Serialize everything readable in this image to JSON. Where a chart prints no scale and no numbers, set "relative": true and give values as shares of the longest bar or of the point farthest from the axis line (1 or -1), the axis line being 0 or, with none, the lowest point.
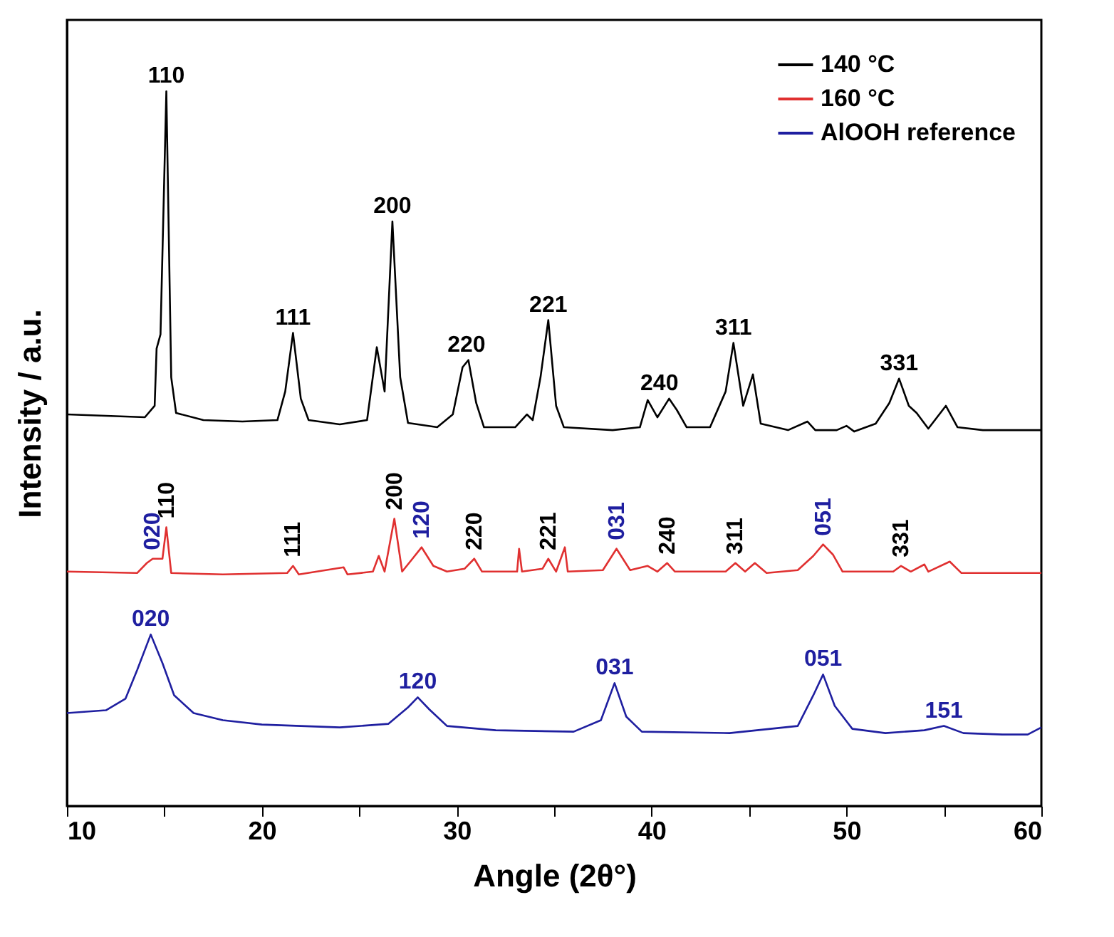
{
  "chart_data": {
    "type": "line",
    "relative": true,
    "xlabel": "Angle (2θ°)",
    "ylabel": "Intensity / a.u.",
    "xlim": [
      10,
      60
    ],
    "xticks": [
      10,
      {
        "value": 15,
        "label": null
      },
      20,
      {
        "value": 25,
        "label": null
      },
      30,
      {
        "value": 35,
        "label": null
      },
      40,
      {
        "value": 45,
        "label": null
      },
      50,
      {
        "value": 55,
        "label": null
      },
      60
    ],
    "legend": "top right",
    "grid": false,
    "line_style": "solid",
    "marker": "none",
    "series": [
      {
        "name": "140 °C",
        "color": "#000000",
        "x": [
          10,
          12,
          14,
          14.5,
          14.6,
          14.8,
          15.1,
          15.35,
          15.6,
          17,
          19,
          20.8,
          21.2,
          21.6,
          22,
          22.4,
          24,
          25.4,
          25.9,
          26.3,
          26.7,
          27.1,
          27.5,
          29,
          29.8,
          30.3,
          30.6,
          31,
          31.4,
          33,
          33.6,
          33.9,
          34.3,
          34.7,
          35.1,
          35.5,
          38,
          39.4,
          39.8,
          40.3,
          40.9,
          41.3,
          41.8,
          43,
          43.8,
          44.2,
          44.7,
          45.2,
          45.6,
          47,
          48,
          48.4,
          49.5,
          50,
          50.4,
          51.5,
          52.2,
          52.7,
          53.2,
          53.6,
          54.2,
          55.1,
          55.7,
          57,
          60
        ],
        "values": [
          0.548,
          0.546,
          0.544,
          0.56,
          0.64,
          0.66,
          1.0,
          0.6,
          0.55,
          0.54,
          0.538,
          0.54,
          0.58,
          0.662,
          0.57,
          0.54,
          0.534,
          0.54,
          0.642,
          0.58,
          0.818,
          0.6,
          0.536,
          0.53,
          0.548,
          0.614,
          0.624,
          0.564,
          0.53,
          0.53,
          0.548,
          0.54,
          0.6,
          0.68,
          0.56,
          0.53,
          0.526,
          0.53,
          0.568,
          0.544,
          0.57,
          0.554,
          0.53,
          0.53,
          0.58,
          0.648,
          0.56,
          0.604,
          0.535,
          0.526,
          0.538,
          0.526,
          0.526,
          0.532,
          0.524,
          0.535,
          0.564,
          0.598,
          0.56,
          0.55,
          0.528,
          0.56,
          0.53,
          0.526,
          0.526
        ]
      },
      {
        "name": "160 °C",
        "color": "#e03030",
        "x": [
          10,
          13.6,
          14.1,
          14.4,
          14.9,
          15.1,
          15.35,
          18,
          21.3,
          21.6,
          21.9,
          24.2,
          24.4,
          25.7,
          26,
          26.3,
          26.8,
          27.2,
          27.7,
          28.2,
          28.8,
          29.5,
          30.4,
          30.9,
          31.3,
          33.1,
          33.2,
          33.35,
          34.4,
          34.7,
          35.1,
          35.55,
          35.7,
          37.5,
          38.2,
          38.9,
          39.8,
          40.3,
          40.8,
          41.2,
          43.8,
          44.3,
          44.8,
          45.3,
          45.9,
          47.5,
          48.3,
          48.8,
          49.3,
          49.8,
          52.4,
          52.8,
          53.3,
          54,
          54.2,
          55.3,
          55.9,
          60
        ],
        "values": [
          0.328,
          0.326,
          0.34,
          0.346,
          0.346,
          0.39,
          0.326,
          0.324,
          0.326,
          0.336,
          0.324,
          0.334,
          0.324,
          0.328,
          0.35,
          0.328,
          0.402,
          0.328,
          0.345,
          0.362,
          0.336,
          0.328,
          0.332,
          0.346,
          0.328,
          0.328,
          0.36,
          0.328,
          0.332,
          0.346,
          0.328,
          0.362,
          0.328,
          0.33,
          0.36,
          0.33,
          0.336,
          0.328,
          0.34,
          0.328,
          0.328,
          0.34,
          0.328,
          0.34,
          0.326,
          0.33,
          0.35,
          0.366,
          0.352,
          0.328,
          0.328,
          0.336,
          0.328,
          0.338,
          0.328,
          0.342,
          0.326,
          0.326
        ]
      },
      {
        "name": "AlOOH reference",
        "color": "#1f1fa0",
        "x": [
          10,
          12,
          13,
          13.6,
          14.3,
          14.9,
          15.5,
          16.5,
          18,
          20,
          24,
          26.5,
          27.5,
          28,
          28.6,
          29.5,
          32,
          36,
          37.4,
          38.1,
          38.7,
          39.5,
          44,
          47.5,
          48.3,
          48.8,
          49.4,
          50.3,
          52,
          54,
          55,
          56,
          58,
          59.3,
          60
        ],
        "values": [
          0.13,
          0.134,
          0.15,
          0.19,
          0.24,
          0.2,
          0.155,
          0.13,
          0.12,
          0.114,
          0.11,
          0.115,
          0.138,
          0.152,
          0.135,
          0.112,
          0.106,
          0.104,
          0.12,
          0.172,
          0.125,
          0.104,
          0.102,
          0.112,
          0.155,
          0.184,
          0.14,
          0.108,
          0.102,
          0.106,
          0.112,
          0.102,
          0.1,
          0.1,
          0.11
        ]
      }
    ],
    "annotations": [
      {
        "text": "110",
        "x": 15.1,
        "y": 1.0
      },
      {
        "text": "111",
        "x": 21.6,
        "y": 0.662
      },
      {
        "text": "200",
        "x": 26.7,
        "y": 0.818
      },
      {
        "text": "220",
        "x": 30.5,
        "y": 0.624
      },
      {
        "text": "221",
        "x": 34.7,
        "y": 0.68
      },
      {
        "text": "240",
        "x": 40.4,
        "y": 0.57
      },
      {
        "text": "311",
        "x": 44.2,
        "y": 0.648
      },
      {
        "text": "331",
        "x": 52.7,
        "y": 0.598
      },
      {
        "text": "020",
        "x": 14.4,
        "y": 0.346
      },
      {
        "text": "110",
        "x": 15.1,
        "y": 0.39
      },
      {
        "text": "111",
        "x": 21.6,
        "y": 0.336
      },
      {
        "text": "200",
        "x": 26.8,
        "y": 0.402
      },
      {
        "text": "120",
        "x": 28.2,
        "y": 0.362
      },
      {
        "text": "220",
        "x": 30.9,
        "y": 0.346
      },
      {
        "text": "221",
        "x": 34.7,
        "y": 0.346
      },
      {
        "text": "031",
        "x": 38.2,
        "y": 0.36
      },
      {
        "text": "240",
        "x": 40.8,
        "y": 0.34
      },
      {
        "text": "311",
        "x": 44.3,
        "y": 0.34
      },
      {
        "text": "051",
        "x": 48.8,
        "y": 0.366
      },
      {
        "text": "331",
        "x": 52.8,
        "y": 0.336
      },
      {
        "text": "020",
        "x": 14.3,
        "y": 0.24
      },
      {
        "text": "120",
        "x": 28.0,
        "y": 0.152
      },
      {
        "text": "031",
        "x": 38.1,
        "y": 0.172
      },
      {
        "text": "051",
        "x": 48.8,
        "y": 0.184
      },
      {
        "text": "151",
        "x": 55.0,
        "y": 0.112
      }
    ]
  }
}
